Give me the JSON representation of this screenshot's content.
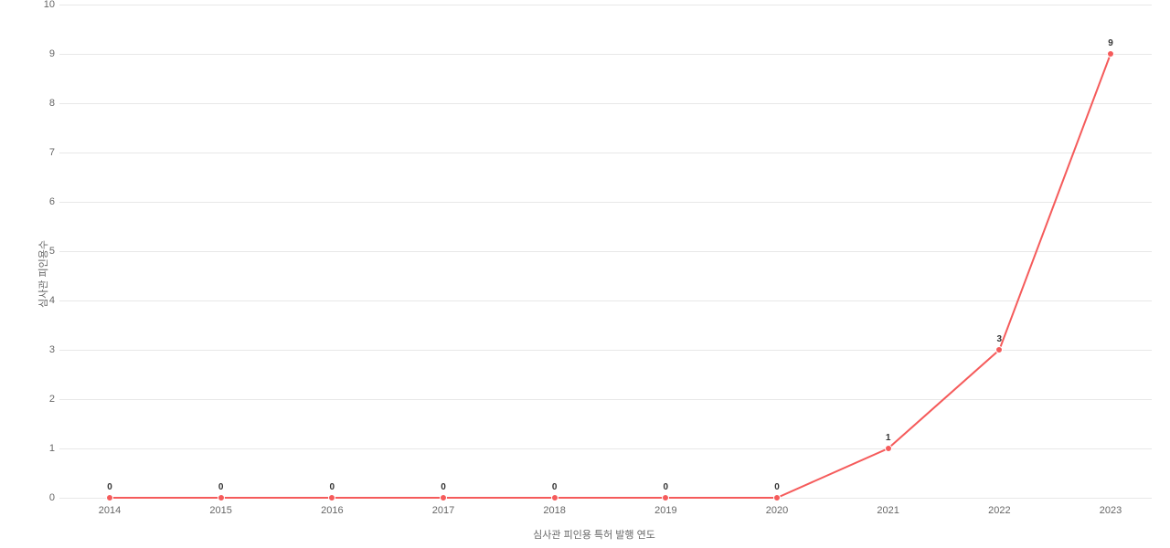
{
  "chart": {
    "type": "line",
    "xlabel": "심사관 피인용 특허 발행 연도",
    "ylabel": "심사관 피인용수",
    "xlabel_fontsize": 11,
    "ylabel_fontsize": 11,
    "label_color": "#666666",
    "categories": [
      "2014",
      "2015",
      "2016",
      "2017",
      "2018",
      "2019",
      "2020",
      "2021",
      "2022",
      "2023"
    ],
    "values": [
      0,
      0,
      0,
      0,
      0,
      0,
      0,
      1,
      3,
      9
    ],
    "line_color": "#f55b5b",
    "line_width": 2,
    "marker_color": "#f55b5b",
    "marker_border": "#ffffff",
    "marker_size": 8,
    "marker_style": "circle",
    "data_label_color": "#333333",
    "data_label_fontsize": 10,
    "data_label_weight": "bold",
    "ylim": [
      0,
      10
    ],
    "ytick_step": 1,
    "yticks": [
      0,
      1,
      2,
      3,
      4,
      5,
      6,
      7,
      8,
      9,
      10
    ],
    "background_color": "#ffffff",
    "grid_color": "#e8e8e8",
    "grid": true,
    "tick_label_color": "#666666",
    "tick_label_fontsize": 11
  }
}
